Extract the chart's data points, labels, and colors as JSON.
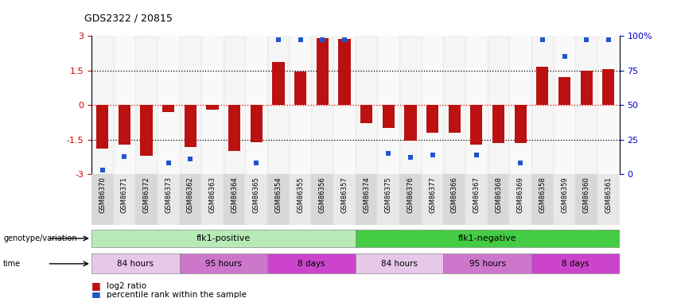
{
  "title": "GDS2322 / 20815",
  "samples": [
    "GSM86370",
    "GSM86371",
    "GSM86372",
    "GSM86373",
    "GSM86362",
    "GSM86363",
    "GSM86364",
    "GSM86365",
    "GSM86354",
    "GSM86355",
    "GSM86356",
    "GSM86357",
    "GSM86374",
    "GSM86375",
    "GSM86376",
    "GSM86377",
    "GSM86366",
    "GSM86367",
    "GSM86368",
    "GSM86369",
    "GSM86358",
    "GSM86359",
    "GSM86360",
    "GSM86361"
  ],
  "log2_ratios": [
    -1.9,
    -1.7,
    -2.2,
    -0.3,
    -1.8,
    -0.2,
    -2.0,
    -1.6,
    1.85,
    1.45,
    2.9,
    2.85,
    -0.8,
    -1.0,
    -1.55,
    -1.2,
    -1.2,
    -1.7,
    -1.65,
    -1.65,
    1.65,
    1.2,
    1.5,
    1.55
  ],
  "percentile_ranks_pct": [
    3,
    13,
    null,
    8,
    11,
    null,
    null,
    8,
    97,
    97,
    97,
    97,
    null,
    15,
    12,
    14,
    null,
    14,
    null,
    8,
    97,
    85,
    97,
    97
  ],
  "bar_color": "#bb1111",
  "dot_color": "#2255cc",
  "background_color": "#ffffff",
  "ylim": [
    -3,
    3
  ],
  "yticks_left": [
    -3,
    -1.5,
    0,
    1.5,
    3
  ],
  "ytick_labels_left": [
    "-3",
    "-1.5",
    "0",
    "1.5",
    "3"
  ],
  "yticks_right_pct": [
    0,
    25,
    50,
    75,
    100
  ],
  "ytick_labels_right": [
    "0",
    "25",
    "50",
    "75",
    "100%"
  ],
  "genotype_groups": [
    {
      "label": "flk1-positive",
      "start": 0,
      "end": 12,
      "color": "#b8eab8"
    },
    {
      "label": "flk1-negative",
      "start": 12,
      "end": 24,
      "color": "#44cc44"
    }
  ],
  "time_groups": [
    {
      "label": "84 hours",
      "start": 0,
      "end": 4,
      "color": "#e8c8e8"
    },
    {
      "label": "95 hours",
      "start": 4,
      "end": 8,
      "color": "#cc77cc"
    },
    {
      "label": "8 days",
      "start": 8,
      "end": 12,
      "color": "#cc44cc"
    },
    {
      "label": "84 hours",
      "start": 12,
      "end": 16,
      "color": "#e8c8e8"
    },
    {
      "label": "95 hours",
      "start": 16,
      "end": 20,
      "color": "#cc77cc"
    },
    {
      "label": "8 days",
      "start": 20,
      "end": 24,
      "color": "#cc44cc"
    }
  ],
  "ylabel_left_color": "#cc0000",
  "ylabel_right_color": "#0000cc"
}
